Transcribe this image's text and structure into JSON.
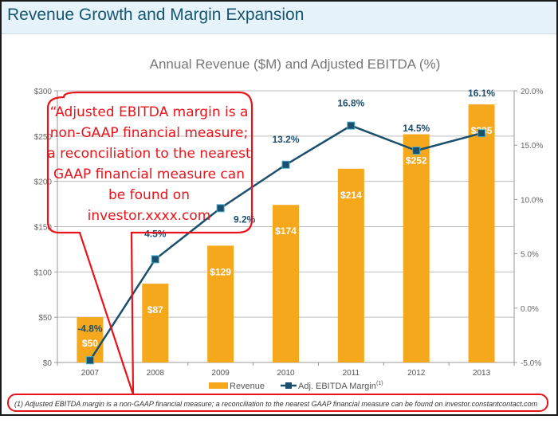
{
  "header": {
    "title": "Revenue Growth and Margin Expansion"
  },
  "callout": {
    "text": "“Adjusted EBITDA margin is a non-GAAP financial measure; a reconciliation to the nearest GAAP financial measure can be found on investor.xxxx.com"
  },
  "footnote": {
    "text": "(1)    Adjusted  EBITDA  margin is a non-GAAP financial measure; a reconciliation to the nearest GAAP financial measure can be found on investor.constantcontact.com"
  },
  "colors": {
    "bar": "#f5a81c",
    "line": "#1c4f6e",
    "marker_fill": "#1c4f6e",
    "marker_stroke": "#4aaec8",
    "callout": "#e8141a",
    "header_bg": "#e6f3fb",
    "title": "#17566f"
  },
  "chart_data": {
    "type": "bar",
    "title": "Annual Revenue ($M) and Adjusted EBITDA (%)",
    "categories": [
      "2007",
      "2008",
      "2009",
      "2010",
      "2011",
      "2012",
      "2013"
    ],
    "series": [
      {
        "name": "Revenue",
        "type": "bar",
        "axis": "left",
        "values": [
          50,
          87,
          129,
          174,
          214,
          252,
          285
        ],
        "labels": [
          "$50",
          "$87",
          "$129",
          "$174",
          "$214",
          "$252",
          "$285"
        ]
      },
      {
        "name": "Adj. EBITDA Margin",
        "superscript": "(1)",
        "type": "line",
        "axis": "right",
        "values": [
          -4.8,
          4.5,
          9.2,
          13.2,
          16.8,
          14.5,
          16.1
        ],
        "labels": [
          "-4.8%",
          "4.5%",
          "9.2%",
          "13.2%",
          "16.8%",
          "14.5%",
          "16.1%"
        ]
      }
    ],
    "y_left": {
      "range": [
        0,
        300
      ],
      "ticks": [
        "$0",
        "$50",
        "$100",
        "$150",
        "$200",
        "$250",
        "$300"
      ],
      "tick_values": [
        0,
        50,
        100,
        150,
        200,
        250,
        300
      ]
    },
    "y_right": {
      "range": [
        -5,
        20
      ],
      "ticks": [
        "-5.0%",
        "0.0%",
        "5.0%",
        "10.0%",
        "15.0%",
        "20.0%"
      ],
      "tick_values": [
        -5,
        0,
        5,
        10,
        15,
        20
      ]
    },
    "grid": true,
    "legend": {
      "position": "bottom",
      "items": [
        "Revenue",
        "Adj. EBITDA Margin"
      ]
    }
  }
}
